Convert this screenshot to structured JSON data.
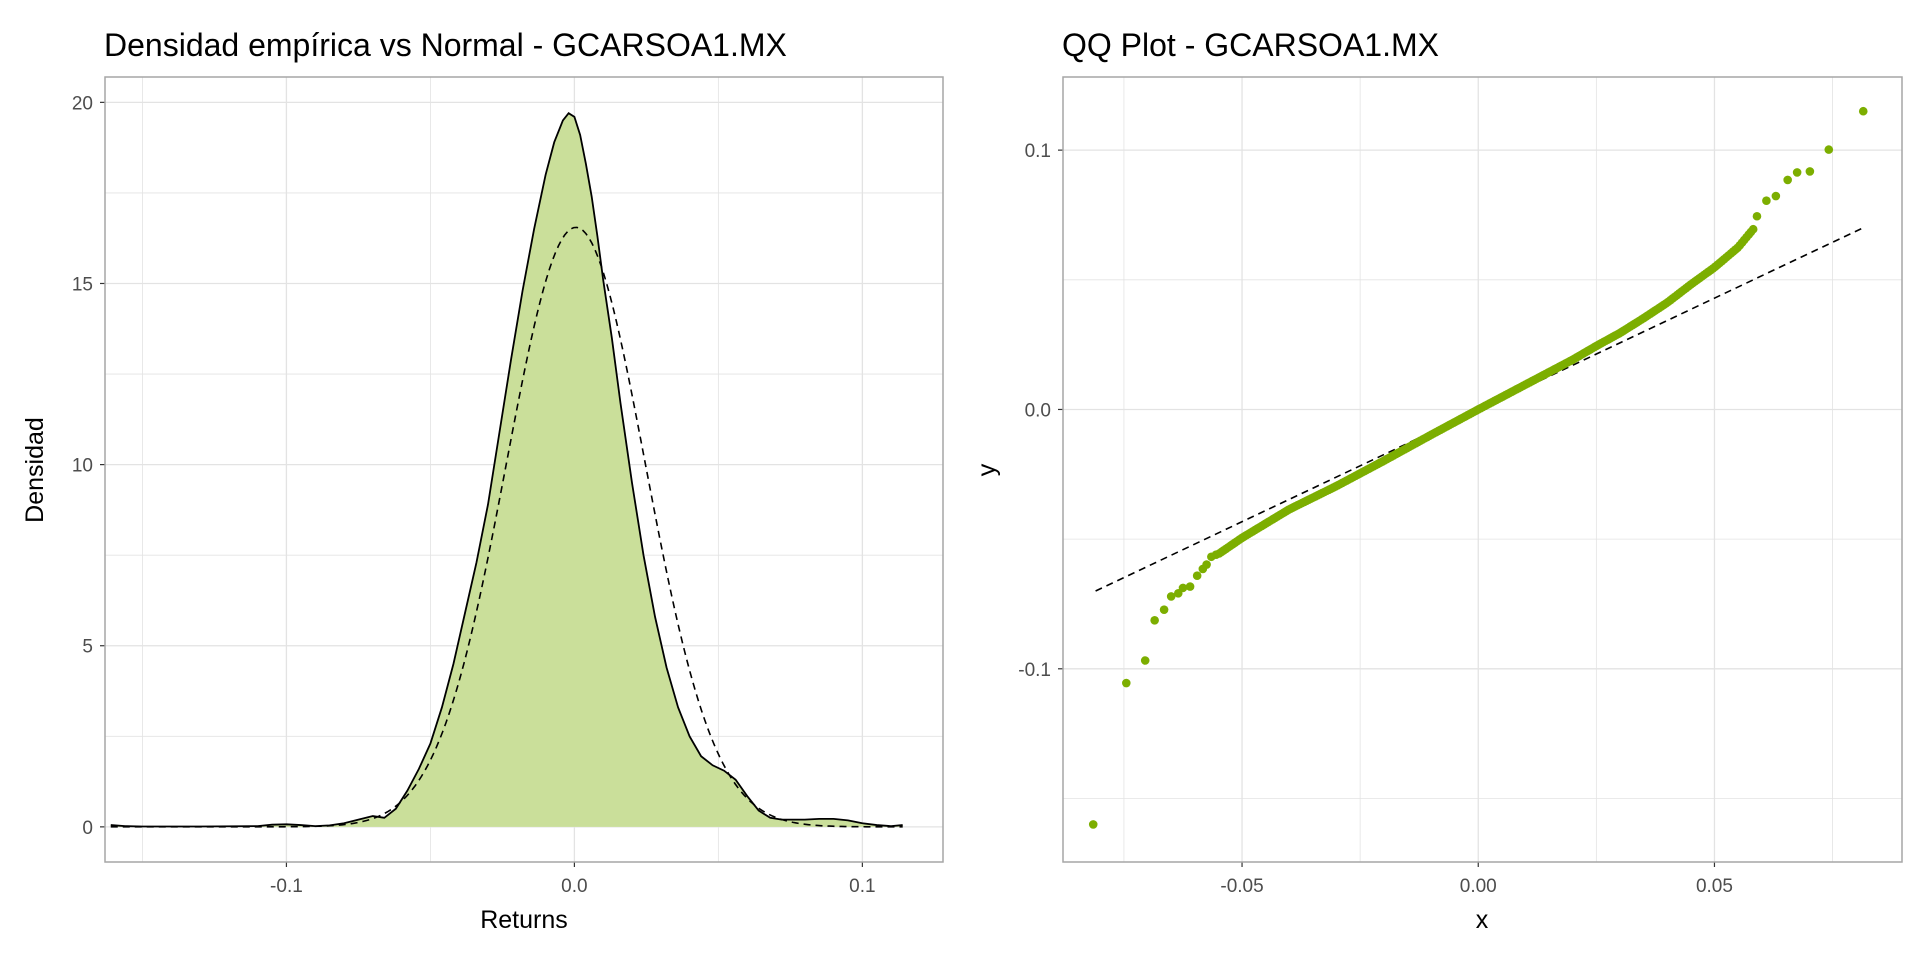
{
  "colors": {
    "accent": "#7CAE00",
    "fill": "#CADF9A",
    "grid": "#E3E3E3",
    "frame": "#A6A6A6",
    "line": "#000000",
    "tick_text": "#4D4D4D",
    "title_text": "#000000"
  },
  "chart_data": [
    {
      "type": "area",
      "title": "Densidad empírica vs Normal - GCARSOA1.MX",
      "xlabel": "Returns",
      "ylabel": "Densidad",
      "xlim": [
        -0.163,
        0.128
      ],
      "ylim": [
        -0.97,
        20.7
      ],
      "grid": true,
      "legend": "none",
      "x_ticks": [
        {
          "value": -0.1,
          "label": "-0.1"
        },
        {
          "value": 0.0,
          "label": "0.0"
        },
        {
          "value": 0.1,
          "label": "0.1"
        }
      ],
      "y_ticks": [
        {
          "value": 0,
          "label": "0"
        },
        {
          "value": 5,
          "label": "5"
        },
        {
          "value": 10,
          "label": "10"
        },
        {
          "value": 15,
          "label": "15"
        },
        {
          "value": 20,
          "label": "20"
        }
      ],
      "series": [
        {
          "style": "filled-solid",
          "x": [
            -0.161,
            -0.156,
            -0.15,
            -0.13,
            -0.11,
            -0.105,
            -0.1,
            -0.095,
            -0.09,
            -0.085,
            -0.08,
            -0.075,
            -0.07,
            -0.066,
            -0.062,
            -0.058,
            -0.054,
            -0.05,
            -0.046,
            -0.042,
            -0.038,
            -0.034,
            -0.03,
            -0.026,
            -0.022,
            -0.018,
            -0.014,
            -0.01,
            -0.007,
            -0.004,
            -0.002,
            0.0,
            0.002,
            0.004,
            0.006,
            0.008,
            0.01,
            0.013,
            0.016,
            0.02,
            0.024,
            0.028,
            0.032,
            0.036,
            0.04,
            0.044,
            0.048,
            0.052,
            0.056,
            0.06,
            0.064,
            0.068,
            0.072,
            0.076,
            0.08,
            0.085,
            0.09,
            0.095,
            0.1,
            0.105,
            0.11,
            0.114
          ],
          "y": [
            0.05,
            0.02,
            0.01,
            0.01,
            0.02,
            0.06,
            0.07,
            0.05,
            0.02,
            0.04,
            0.1,
            0.2,
            0.3,
            0.25,
            0.5,
            1.0,
            1.6,
            2.3,
            3.3,
            4.5,
            5.9,
            7.3,
            8.9,
            10.9,
            12.9,
            14.8,
            16.5,
            18.0,
            18.9,
            19.5,
            19.7,
            19.6,
            19.1,
            18.3,
            17.4,
            16.3,
            15.1,
            13.5,
            11.7,
            9.5,
            7.5,
            5.8,
            4.4,
            3.3,
            2.5,
            1.95,
            1.7,
            1.55,
            1.3,
            0.85,
            0.45,
            0.25,
            0.2,
            0.2,
            0.2,
            0.22,
            0.22,
            0.18,
            0.1,
            0.05,
            0.02,
            0.05
          ]
        },
        {
          "style": "dashed",
          "distribution": "normal",
          "mean": 0.0005,
          "sd": 0.0241,
          "x_range": [
            -0.161,
            0.114
          ],
          "peak": 16.55
        }
      ]
    },
    {
      "type": "scatter",
      "title": "QQ Plot - GCARSOA1.MX",
      "xlabel": "x",
      "ylabel": "y",
      "xlim": [
        -0.0879,
        0.0897
      ],
      "ylim": [
        -0.1745,
        0.1282
      ],
      "grid": true,
      "legend": "none",
      "x_ticks": [
        {
          "value": -0.05,
          "label": "-0.05"
        },
        {
          "value": 0.0,
          "label": "0.00"
        },
        {
          "value": 0.05,
          "label": "0.05"
        }
      ],
      "y_ticks": [
        {
          "value": -0.1,
          "label": "-0.1"
        },
        {
          "value": 0.0,
          "label": "0.0"
        },
        {
          "value": 0.1,
          "label": "0.1"
        }
      ],
      "reference_line": {
        "style": "dashed",
        "x": [
          -0.081,
          0.082
        ],
        "y": [
          -0.07,
          0.0705
        ]
      },
      "tail_points": {
        "x": [
          -0.0815,
          -0.0745,
          -0.0705,
          -0.0685,
          -0.0665,
          -0.065,
          -0.0635,
          -0.0625,
          -0.061,
          -0.0595,
          -0.0583,
          -0.0575,
          -0.0565,
          -0.0555,
          0.059,
          0.061,
          0.063,
          0.0655,
          0.0675,
          0.0702,
          0.0742,
          0.0815
        ],
        "y": [
          -0.16,
          -0.1055,
          -0.0968,
          -0.0813,
          -0.0772,
          -0.0721,
          -0.0709,
          -0.0688,
          -0.0683,
          -0.0641,
          -0.0615,
          -0.0598,
          -0.0568,
          -0.056,
          0.0745,
          0.0805,
          0.0823,
          0.0885,
          0.0914,
          0.0918,
          0.1002,
          0.115
        ]
      },
      "body_points": {
        "count": 240,
        "x_range": [
          -0.0548,
          0.0582
        ],
        "quantile_knots": {
          "x": [
            -0.0548,
            -0.05,
            -0.04,
            -0.03,
            -0.02,
            -0.01,
            0.0,
            0.01,
            0.02,
            0.025,
            0.03,
            0.035,
            0.04,
            0.045,
            0.05,
            0.055,
            0.0582
          ],
          "y": [
            -0.0555,
            -0.0495,
            -0.0385,
            -0.0295,
            -0.0198,
            -0.0098,
            0.0,
            0.0096,
            0.0192,
            0.0245,
            0.0295,
            0.0352,
            0.0412,
            0.0482,
            0.0548,
            0.0625,
            0.0695
          ]
        }
      }
    }
  ]
}
